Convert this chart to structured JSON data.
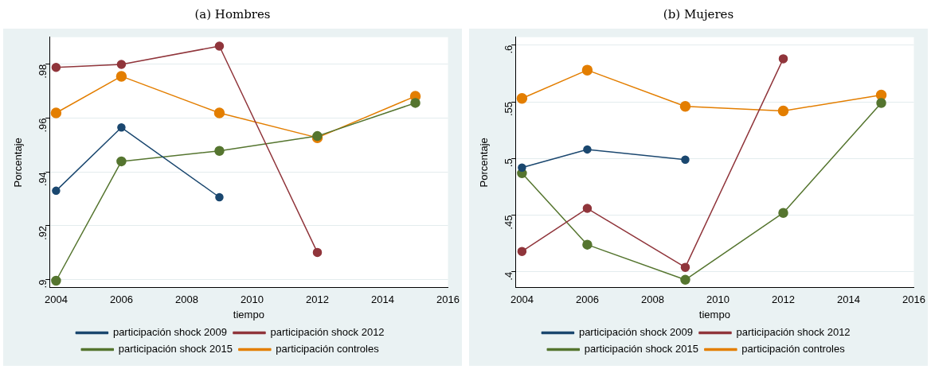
{
  "chart_data": [
    {
      "type": "line",
      "title": "(a) Hombres",
      "xlabel": "tiempo",
      "ylabel": "Porcentaje",
      "xlim": [
        2003.8,
        2016
      ],
      "xticks": [
        2004,
        2006,
        2008,
        2010,
        2012,
        2014,
        2016
      ],
      "ylim": [
        0.897,
        0.99
      ],
      "yticks": [
        {
          "value": 0.9,
          "label": ".9"
        },
        {
          "value": 0.92,
          "label": ".92"
        },
        {
          "value": 0.94,
          "label": ".94"
        },
        {
          "value": 0.96,
          "label": ".96"
        },
        {
          "value": 0.98,
          "label": ".98"
        }
      ],
      "grid": "y",
      "legend": "bottom",
      "marker": "circle",
      "line_style": "solid",
      "series": [
        {
          "name": "participación shock 2009",
          "color": "#1a476f",
          "x": [
            2004,
            2006,
            2009
          ],
          "values": [
            0.933,
            0.9565,
            0.9306
          ]
        },
        {
          "name": "participación shock 2012",
          "color": "#90353b",
          "x": [
            2004,
            2006,
            2009,
            2012
          ],
          "values": [
            0.9788,
            0.9799,
            0.9867,
            0.9101
          ]
        },
        {
          "name": "participación shock 2015",
          "color": "#55752f",
          "x": [
            2004,
            2006,
            2009,
            2012,
            2015
          ],
          "values": [
            0.8996,
            0.9439,
            0.9478,
            0.9533,
            0.9656
          ]
        },
        {
          "name": "participación controles",
          "color": "#e37e00",
          "x": [
            2004,
            2006,
            2009,
            2012,
            2015
          ],
          "values": [
            0.9619,
            0.9755,
            0.9619,
            0.9527,
            0.9681
          ]
        }
      ]
    },
    {
      "type": "line",
      "title": "(b) Mujeres",
      "xlabel": "tiempo",
      "ylabel": "Porcentaje",
      "xlim": [
        2003.8,
        2016
      ],
      "xticks": [
        2004,
        2006,
        2008,
        2010,
        2012,
        2014,
        2016
      ],
      "ylim": [
        0.386,
        0.607
      ],
      "yticks": [
        {
          "value": 0.4,
          "label": ".4"
        },
        {
          "value": 0.45,
          "label": ".45"
        },
        {
          "value": 0.5,
          "label": ".5"
        },
        {
          "value": 0.55,
          "label": ".55"
        },
        {
          "value": 0.6,
          "label": ".6"
        }
      ],
      "grid": "y",
      "legend": "bottom",
      "marker": "circle",
      "line_style": "solid",
      "series": [
        {
          "name": "participación shock 2009",
          "color": "#1a476f",
          "x": [
            2004,
            2006,
            2009
          ],
          "values": [
            0.492,
            0.508,
            0.499
          ]
        },
        {
          "name": "participación shock 2012",
          "color": "#90353b",
          "x": [
            2004,
            2006,
            2009,
            2012
          ],
          "values": [
            0.418,
            0.456,
            0.404,
            0.588
          ]
        },
        {
          "name": "participación shock 2015",
          "color": "#55752f",
          "x": [
            2004,
            2006,
            2009,
            2012,
            2015
          ],
          "values": [
            0.487,
            0.424,
            0.393,
            0.452,
            0.549
          ]
        },
        {
          "name": "participación controles",
          "color": "#e37e00",
          "x": [
            2004,
            2006,
            2009,
            2012,
            2015
          ],
          "values": [
            0.553,
            0.578,
            0.546,
            0.542,
            0.556
          ]
        }
      ]
    }
  ]
}
